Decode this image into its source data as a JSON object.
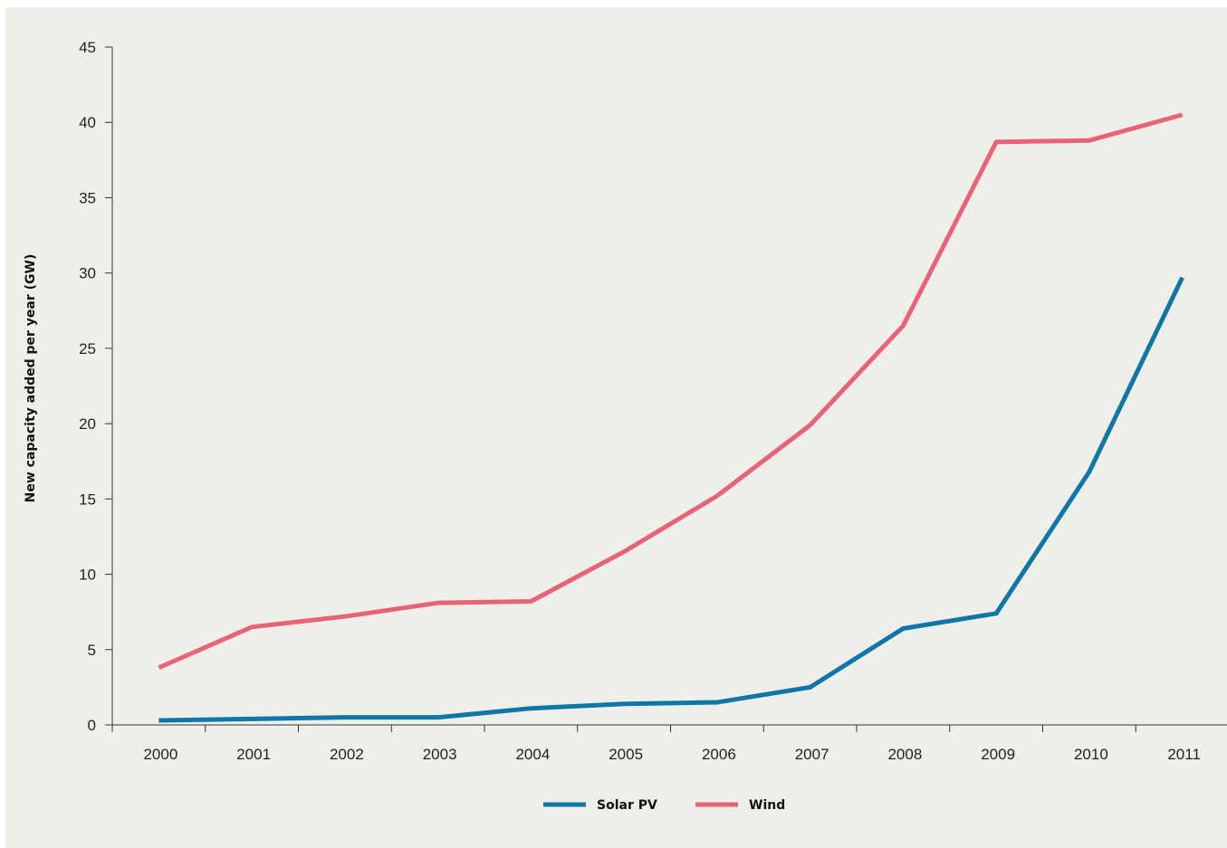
{
  "chart_data": {
    "type": "line",
    "title": "",
    "xlabel": "",
    "ylabel": "New capacity added per year (GW)",
    "ylim": [
      0,
      45
    ],
    "y_ticks": [
      "0",
      "5",
      "10",
      "15",
      "20",
      "25",
      "30",
      "35",
      "40",
      "45"
    ],
    "categories": [
      "2000",
      "2001",
      "2002",
      "2003",
      "2004",
      "2005",
      "2006",
      "2007",
      "2008",
      "2009",
      "2010",
      "2011"
    ],
    "series": [
      {
        "name": "Solar PV",
        "color": "#0f77a8",
        "values": [
          0.3,
          0.4,
          0.5,
          0.5,
          1.1,
          1.4,
          1.5,
          2.5,
          6.4,
          7.4,
          16.8,
          29.7
        ]
      },
      {
        "name": "Wind",
        "color": "#e86375",
        "values": [
          3.8,
          6.5,
          7.2,
          8.1,
          8.2,
          11.5,
          15.2,
          19.9,
          26.5,
          38.7,
          38.8,
          40.5
        ]
      }
    ],
    "grid": false,
    "legend_position": "bottom-center"
  }
}
